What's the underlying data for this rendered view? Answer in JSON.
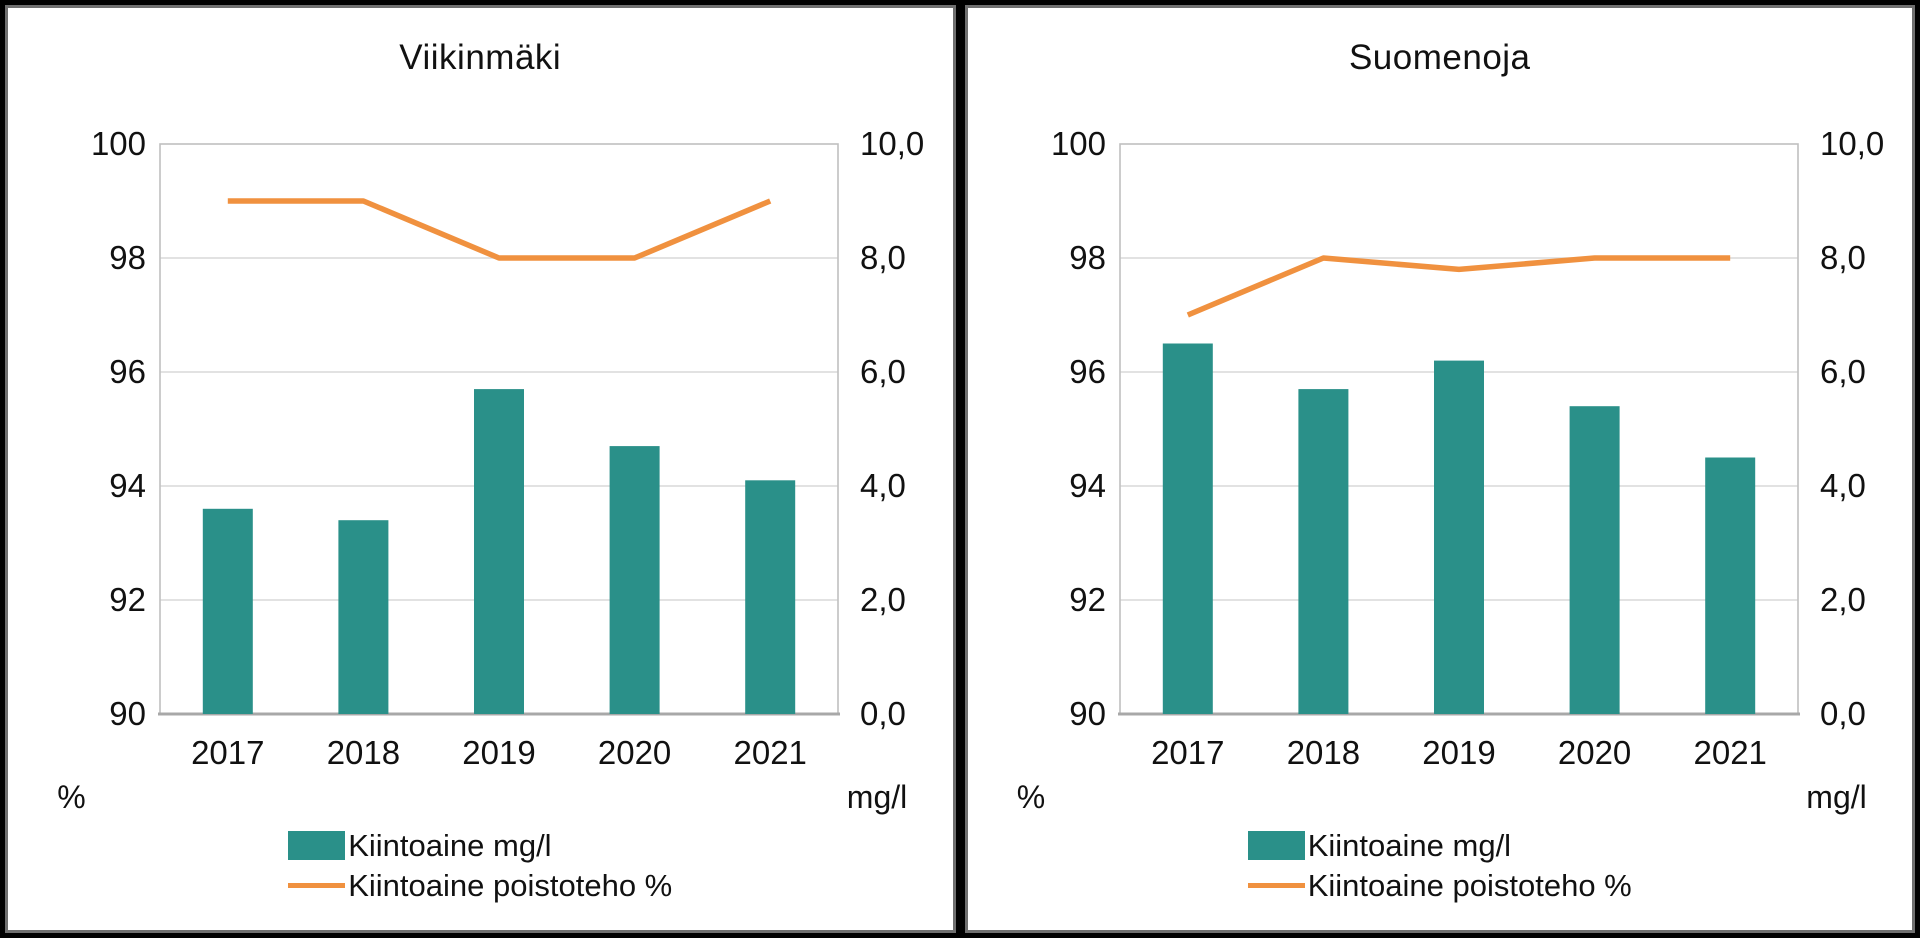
{
  "colors": {
    "bar_teal": "#2A9089",
    "line_orange": "#F0913F",
    "gridline": "#D9D9D9",
    "plot_border": "#C0C0C0",
    "bottom_axis": "#A8A8A8",
    "text": "#111111",
    "panel_border": "#6F6F6F",
    "page_background": "#000000",
    "panel_background": "#FFFFFF"
  },
  "chart_data": [
    {
      "type": "combo-bar-line",
      "title": "Viikinmäki",
      "categories": [
        "2017",
        "2018",
        "2019",
        "2020",
        "2021"
      ],
      "series": [
        {
          "name": "Kiintoaine mg/l",
          "type": "bar",
          "axis": "right",
          "values": [
            3.6,
            3.4,
            5.7,
            4.7,
            4.1
          ]
        },
        {
          "name": "Kiintoaine poistoteho %",
          "type": "line",
          "axis": "left",
          "values": [
            99.0,
            99.0,
            98.0,
            98.0,
            99.0
          ]
        }
      ],
      "left_axis": {
        "label": "%",
        "min": 90,
        "max": 100,
        "tick_step": 2,
        "tick_labels": [
          "100",
          "98",
          "96",
          "94",
          "92",
          "90"
        ]
      },
      "right_axis": {
        "label": "mg/l",
        "min": 0,
        "max": 10,
        "tick_step": 2,
        "tick_labels": [
          "10,0",
          "8,0",
          "6,0",
          "4,0",
          "2,0",
          "0,0"
        ]
      },
      "grid": true,
      "legend_position": "bottom"
    },
    {
      "type": "combo-bar-line",
      "title": "Suomenoja",
      "categories": [
        "2017",
        "2018",
        "2019",
        "2020",
        "2021"
      ],
      "series": [
        {
          "name": "Kiintoaine mg/l",
          "type": "bar",
          "axis": "right",
          "values": [
            6.5,
            5.7,
            6.2,
            5.4,
            4.5
          ]
        },
        {
          "name": "Kiintoaine poistoteho %",
          "type": "line",
          "axis": "left",
          "values": [
            97.0,
            98.0,
            97.8,
            98.0,
            98.0
          ]
        }
      ],
      "left_axis": {
        "label": "%",
        "min": 90,
        "max": 100,
        "tick_step": 2,
        "tick_labels": [
          "100",
          "98",
          "96",
          "94",
          "92",
          "90"
        ]
      },
      "right_axis": {
        "label": "mg/l",
        "min": 0,
        "max": 10,
        "tick_step": 2,
        "tick_labels": [
          "10,0",
          "8,0",
          "6,0",
          "4,0",
          "2,0",
          "0,0"
        ]
      },
      "grid": true,
      "legend_position": "bottom"
    }
  ]
}
